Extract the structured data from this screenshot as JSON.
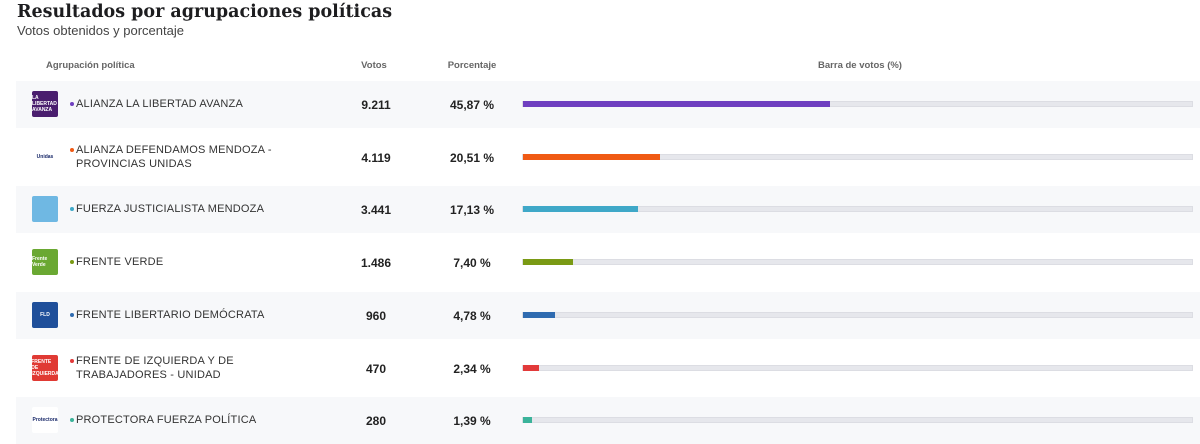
{
  "header": {
    "title": "Resultados por agrupaciones políticas",
    "subtitle": "Votos obtenidos y porcentaje"
  },
  "columns": {
    "party": "Agrupación política",
    "votes": "Votos",
    "percent": "Porcentaje",
    "bar": "Barra de votos (%)"
  },
  "rows": [
    {
      "name": "ALIANZA LA LIBERTAD AVANZA",
      "votes": "9.211",
      "percent": "45,87 %",
      "value": 45.87,
      "color": "#6f3fc0",
      "logo_bg": "#4a1e6e",
      "logo_text": "LA LIBERTAD AVANZA"
    },
    {
      "name": "ALIANZA DEFENDAMOS MENDOZA - PROVINCIAS UNIDAS",
      "votes": "4.119",
      "percent": "20,51 %",
      "value": 20.51,
      "color": "#f05a14",
      "logo_bg": "#ffffff",
      "logo_text": "Unidas"
    },
    {
      "name": "FUERZA JUSTICIALISTA MENDOZA",
      "votes": "3.441",
      "percent": "17,13 %",
      "value": 17.13,
      "color": "#3fa8c8",
      "logo_bg": "#6fb8e3",
      "logo_text": ""
    },
    {
      "name": "FRENTE VERDE",
      "votes": "1.486",
      "percent": "7,40 %",
      "value": 7.4,
      "color": "#7a9a14",
      "logo_bg": "#6aa832",
      "logo_text": "Frente Verde"
    },
    {
      "name": "FRENTE LIBERTARIO DEMÓCRATA",
      "votes": "960",
      "percent": "4,78 %",
      "value": 4.78,
      "color": "#2f6bb0",
      "logo_bg": "#1f4f9a",
      "logo_text": "FLD"
    },
    {
      "name": "FRENTE DE IZQUIERDA Y DE TRABAJADORES - UNIDAD",
      "votes": "470",
      "percent": "2,34 %",
      "value": 2.34,
      "color": "#e23a3a",
      "logo_bg": "#e03a34",
      "logo_text": "FRENTE DE IZQUIERDA"
    },
    {
      "name": "PROTECTORA FUERZA POLÍTICA",
      "votes": "280",
      "percent": "1,39 %",
      "value": 1.39,
      "color": "#3bb39a",
      "logo_bg": "#ffffff",
      "logo_text": "Protectora"
    }
  ]
}
